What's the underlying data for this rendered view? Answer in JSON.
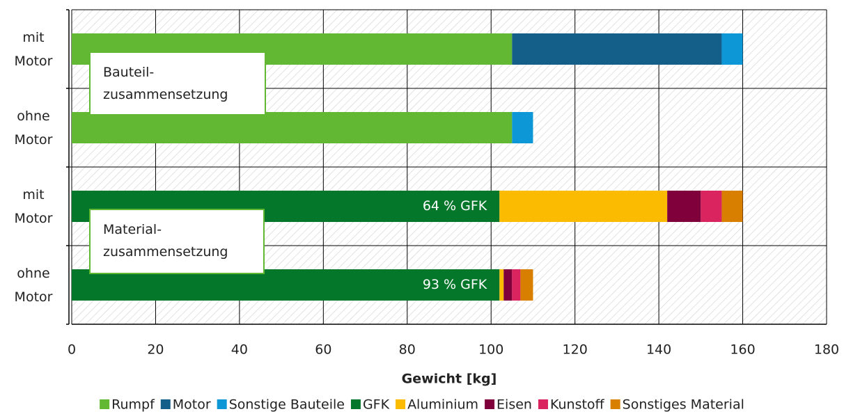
{
  "chart_data": {
    "type": "bar",
    "orientation": "horizontal",
    "stacked": true,
    "categories": [
      "mit\nMotor",
      "ohne\nMotor",
      "mit\nMotor",
      "ohne\nMotor"
    ],
    "series": [
      {
        "name": "Rumpf",
        "color": "#62b832",
        "values": [
          105,
          105,
          null,
          null
        ]
      },
      {
        "name": "Motor",
        "color": "#145e8a",
        "values": [
          50,
          null,
          null,
          null
        ]
      },
      {
        "name": "Sonstige Bauteile",
        "color": "#0d97d6",
        "values": [
          5,
          5,
          null,
          null
        ]
      },
      {
        "name": "GFK",
        "color": "#04772b",
        "values": [
          null,
          null,
          102,
          102
        ]
      },
      {
        "name": "Aluminium",
        "color": "#fbbb00",
        "values": [
          null,
          null,
          40,
          1
        ]
      },
      {
        "name": "Eisen",
        "color": "#80003c",
        "values": [
          null,
          null,
          8,
          2
        ]
      },
      {
        "name": "Kunstoff",
        "color": "#d9245f",
        "values": [
          null,
          null,
          5,
          2
        ]
      },
      {
        "name": "Sonstiges Material",
        "color": "#d97f00",
        "values": [
          null,
          null,
          5,
          3
        ]
      }
    ],
    "xlabel": "Gewicht [kg]",
    "xlim": [
      0,
      180
    ],
    "xticks": [
      0,
      20,
      40,
      60,
      80,
      100,
      120,
      140,
      160,
      180
    ],
    "grid": true,
    "legend": "bottom",
    "annotations": [
      "Bauteil-\nzusammensetzung",
      "Material-\nzusammensetzung",
      "64 % GFK",
      "93 % GFK"
    ]
  }
}
